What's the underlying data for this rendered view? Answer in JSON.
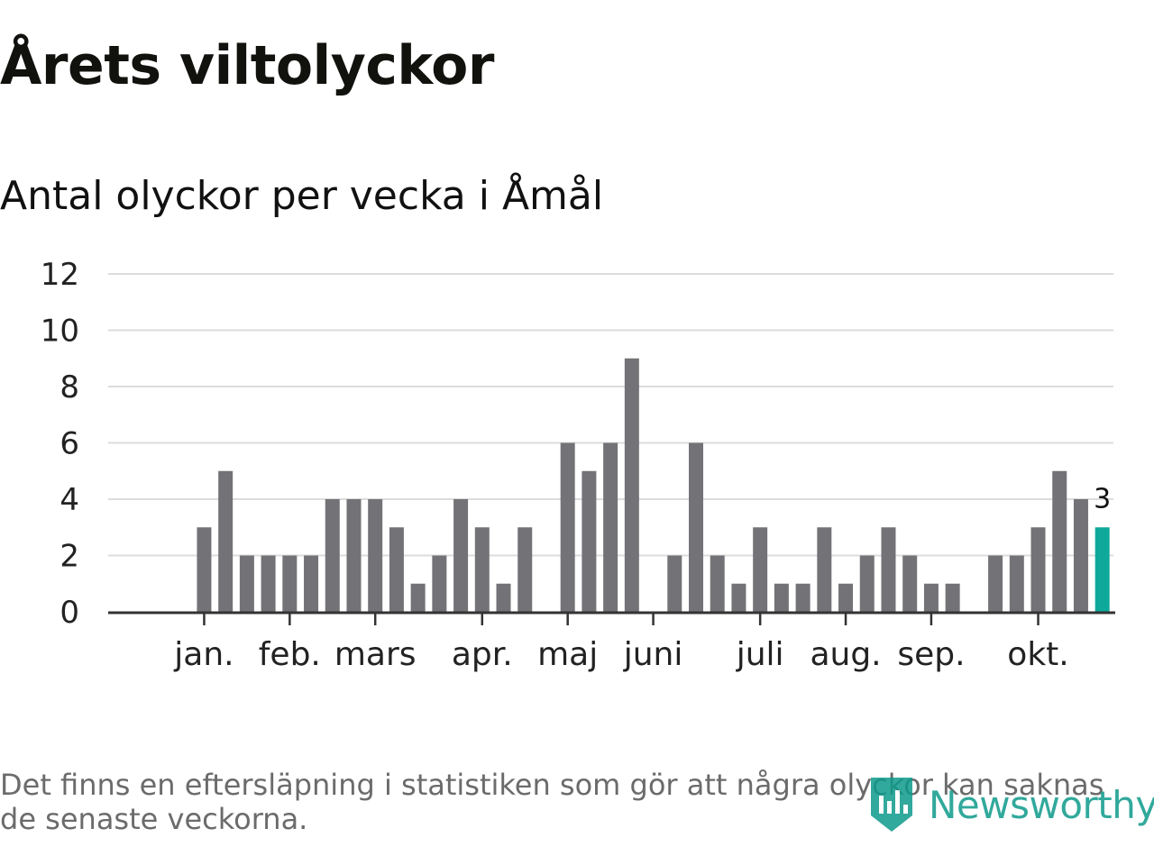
{
  "title": "Årets viltolyckor",
  "subtitle": "Antal olyckor per vecka i Åmål",
  "footnote": "Det finns en eftersläpning i statistiken som gör att några olyckor kan saknas de senaste veckorna.",
  "brand": {
    "name": "Newsworthy",
    "icon": "newsworthy-logo-icon",
    "color": "#0e9b8b"
  },
  "colors": {
    "bar": "#737377",
    "highlight": "#0ea99a",
    "grid": "#dcdcdc",
    "axis": "#333333",
    "tick_text": "#222222"
  },
  "chart_data": {
    "type": "bar",
    "title": "Antal olyckor per vecka i Åmål",
    "xlabel": "",
    "ylabel": "",
    "ylim": [
      0,
      12
    ],
    "yticks": [
      0,
      2,
      4,
      6,
      8,
      10,
      12
    ],
    "grid": true,
    "week_slots": 44,
    "values": [
      null,
      null,
      3,
      5,
      2,
      2,
      2,
      2,
      4,
      4,
      4,
      3,
      1,
      2,
      4,
      3,
      1,
      3,
      null,
      6,
      5,
      6,
      9,
      null,
      2,
      6,
      2,
      1,
      3,
      1,
      1,
      3,
      1,
      2,
      3,
      2,
      1,
      1,
      null,
      2,
      2,
      3,
      5,
      4,
      3
    ],
    "highlight_index": 44,
    "highlight_label": "3",
    "month_ticks": [
      {
        "label": "jan.",
        "week": 2
      },
      {
        "label": "feb.",
        "week": 6
      },
      {
        "label": "mars",
        "week": 10
      },
      {
        "label": "apr.",
        "week": 15
      },
      {
        "label": "maj",
        "week": 19
      },
      {
        "label": "juni",
        "week": 23
      },
      {
        "label": "juli",
        "week": 28
      },
      {
        "label": "aug.",
        "week": 32
      },
      {
        "label": "sep.",
        "week": 36
      },
      {
        "label": "okt.",
        "week": 41
      }
    ]
  }
}
